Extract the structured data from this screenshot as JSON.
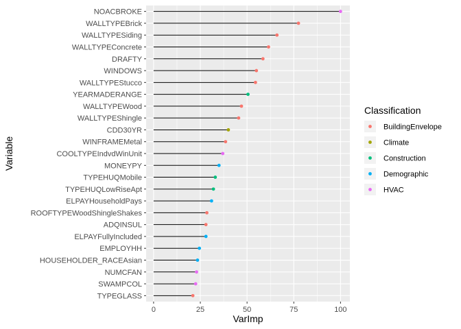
{
  "chart_data": {
    "type": "lollipop",
    "xlabel": "VarImp",
    "ylabel": "Variable",
    "xlim": [
      -4,
      105
    ],
    "xticks": [
      0,
      25,
      50,
      75,
      100
    ],
    "grid": true,
    "legend_position": "right",
    "legend": {
      "title": "Classification",
      "entries": [
        {
          "name": "BuildingEnvelope",
          "color": "#F8766D"
        },
        {
          "name": "Climate",
          "color": "#A3A500"
        },
        {
          "name": "Construction",
          "color": "#00BF7D"
        },
        {
          "name": "Demographic",
          "color": "#00B0F6"
        },
        {
          "name": "HVAC",
          "color": "#E76BF3"
        }
      ]
    },
    "points": [
      {
        "variable": "NOACBROKE",
        "value": 100,
        "class": "HVAC"
      },
      {
        "variable": "WALLTYPEBrick",
        "value": 77.5,
        "class": "BuildingEnvelope"
      },
      {
        "variable": "WALLTYPESiding",
        "value": 66,
        "class": "BuildingEnvelope"
      },
      {
        "variable": "WALLTYPEConcrete",
        "value": 61.5,
        "class": "BuildingEnvelope"
      },
      {
        "variable": "DRAFTY",
        "value": 58.5,
        "class": "BuildingEnvelope"
      },
      {
        "variable": "WINDOWS",
        "value": 55,
        "class": "BuildingEnvelope"
      },
      {
        "variable": "WALLTYPEStucco",
        "value": 54.5,
        "class": "BuildingEnvelope"
      },
      {
        "variable": "YEARMADERANGE",
        "value": 50.5,
        "class": "Construction"
      },
      {
        "variable": "WALLTYPEWood",
        "value": 47,
        "class": "BuildingEnvelope"
      },
      {
        "variable": "WALLTYPEShingle",
        "value": 45.5,
        "class": "BuildingEnvelope"
      },
      {
        "variable": "CDD30YR",
        "value": 40,
        "class": "Climate"
      },
      {
        "variable": "WINFRAMEMetal",
        "value": 38.5,
        "class": "BuildingEnvelope"
      },
      {
        "variable": "COOLTYPEIndvdWinUnit",
        "value": 37,
        "class": "HVAC"
      },
      {
        "variable": "MONEYPY",
        "value": 35,
        "class": "Demographic"
      },
      {
        "variable": "TYPEHUQMobile",
        "value": 33,
        "class": "Construction"
      },
      {
        "variable": "TYPEHUQLowRiseApt",
        "value": 32,
        "class": "Construction"
      },
      {
        "variable": "ELPAYHouseholdPays",
        "value": 31,
        "class": "Demographic"
      },
      {
        "variable": "ROOFTYPEWoodShingleShakes",
        "value": 28.5,
        "class": "BuildingEnvelope"
      },
      {
        "variable": "ADQINSUL",
        "value": 28,
        "class": "BuildingEnvelope"
      },
      {
        "variable": "ELPAYFullyIncluded",
        "value": 28,
        "class": "Demographic"
      },
      {
        "variable": "EMPLOYHH",
        "value": 24.5,
        "class": "Demographic"
      },
      {
        "variable": "HOUSEHOLDER_RACEAsian",
        "value": 23.5,
        "class": "Demographic"
      },
      {
        "variable": "NUMCFAN",
        "value": 23,
        "class": "HVAC"
      },
      {
        "variable": "SWAMPCOL",
        "value": 22.5,
        "class": "HVAC"
      },
      {
        "variable": "TYPEGLASS",
        "value": 21,
        "class": "BuildingEnvelope"
      }
    ]
  }
}
